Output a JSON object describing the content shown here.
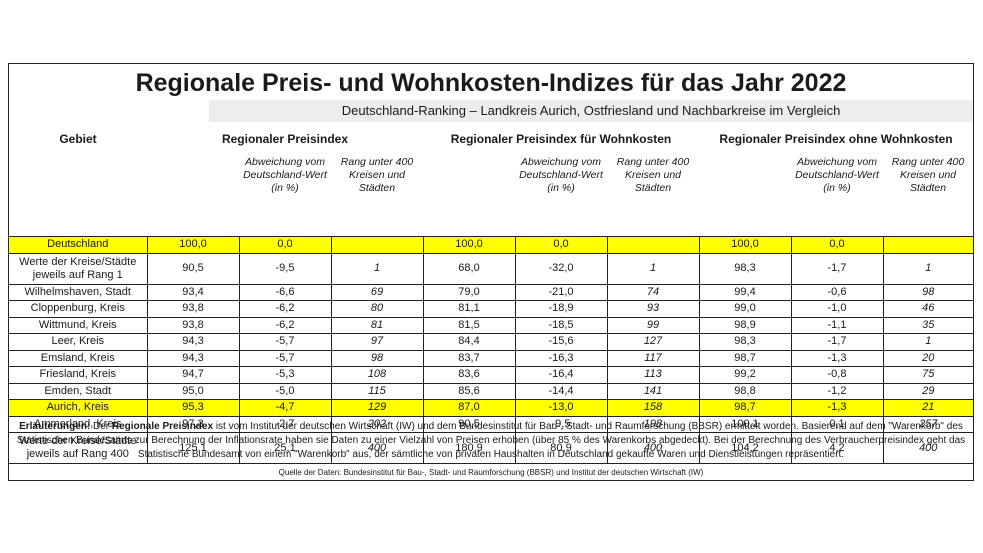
{
  "title": "Regionale Preis- und Wohnkosten-Indizes für das Jahr 2022",
  "subtitle": "Deutschland-Ranking –  Landkreis Aurich, Ostfriesland und Nachbarkreise im Vergleich",
  "headers": {
    "area": "Gebiet",
    "group1": "Regionaler Preisindex",
    "group2": "Regionaler Preisindex für Wohnkosten",
    "group3": "Regionaler Preisindex ohne Wohnkosten",
    "dev_l1": "Abweichung vom",
    "dev_l2": "Deutschland-Wert",
    "dev_l3": "(in %)",
    "rank_l1": "Rang unter 400",
    "rank_l2": "Kreisen und",
    "rank_l3": "Städten"
  },
  "rows": [
    {
      "name": "Deutschland",
      "c": [
        "100,0",
        "0,0",
        "",
        "100,0",
        "0,0",
        "",
        "100,0",
        "0,0",
        ""
      ]
    },
    {
      "name1": "Werte der Kreise/Städte",
      "name2": "jeweils auf Rang 1",
      "c": [
        "90,5",
        "-9,5",
        "1",
        "68,0",
        "-32,0",
        "1",
        "98,3",
        "-1,7",
        "1"
      ]
    },
    {
      "name": "Wilhelmshaven, Stadt",
      "c": [
        "93,4",
        "-6,6",
        "69",
        "79,0",
        "-21,0",
        "74",
        "99,4",
        "-0,6",
        "98"
      ]
    },
    {
      "name": "Cloppenburg, Kreis",
      "c": [
        "93,8",
        "-6,2",
        "80",
        "81,1",
        "-18,9",
        "93",
        "99,0",
        "-1,0",
        "46"
      ]
    },
    {
      "name": "Wittmund, Kreis",
      "c": [
        "93,8",
        "-6,2",
        "81",
        "81,5",
        "-18,5",
        "99",
        "98,9",
        "-1,1",
        "35"
      ]
    },
    {
      "name": "Leer, Kreis",
      "c": [
        "94,3",
        "-5,7",
        "97",
        "84,4",
        "-15,6",
        "127",
        "98,3",
        "-1,7",
        "1"
      ]
    },
    {
      "name": "Emsland, Kreis",
      "c": [
        "94,3",
        "-5,7",
        "98",
        "83,7",
        "-16,3",
        "117",
        "98,7",
        "-1,3",
        "20"
      ]
    },
    {
      "name": "Friesland, Kreis",
      "c": [
        "94,7",
        "-5,3",
        "108",
        "83,6",
        "-16,4",
        "113",
        "99,2",
        "-0,8",
        "75"
      ]
    },
    {
      "name": "Emden, Stadt",
      "c": [
        "95,0",
        "-5,0",
        "115",
        "85,6",
        "-14,4",
        "141",
        "98,8",
        "-1,2",
        "29"
      ]
    },
    {
      "name": "Aurich, Kreis",
      "c": [
        "95,3",
        "-4,7",
        "129",
        "87,0",
        "-13,0",
        "158",
        "98,7",
        "-1,3",
        "21"
      ]
    },
    {
      "name": "Ammerland, Kreis",
      "c": [
        "97,3",
        "-2,7",
        "202",
        "90,5",
        "-9,5",
        "198",
        "100,1",
        "0,1",
        "257"
      ]
    },
    {
      "name1": "Werte der Kreise/Städte",
      "name2": "jeweils auf Rang 400",
      "c": [
        "125,1",
        "25,1",
        "400",
        "180,9",
        "80,9",
        "400",
        "104,2",
        "4,2",
        "400"
      ]
    }
  ],
  "notes": {
    "label": "Erläuterungen:",
    "p1": " Der ",
    "bold": "Regionale Preisindex",
    "p2": " ist vom Institut der deutschen Wirtschaft (IW) und dem Bundesinstitut für Bau-, Stadt- und Raumforschung (BBSR) ermittelt worden. Basierend auf dem \"Warenkorb\" des Statistischen Bundesamts zur Berechnung der Inflationsrate haben sie Daten zu einer Vielzahl von Preisen erhoben (über 85 % des Warenkorbs abgedeckt). Bei der Berechnung des Verbraucherpreisindex geht das Statistische Bundesamt von einem \"Warenkorb\" aus, der sämtliche von privaten Haushalten in Deutschland gekaufte Waren und Dienstleistungen repräsentiert."
  },
  "source": "Quelle der Daten: Bundesinstitut für Bau-, Stadt- und Raumforschung (BBSR) und Institut der deutschen Wirtschaft (IW)",
  "colors": {
    "highlight": "#ffff00",
    "subtitle_bg": "#ededed"
  }
}
